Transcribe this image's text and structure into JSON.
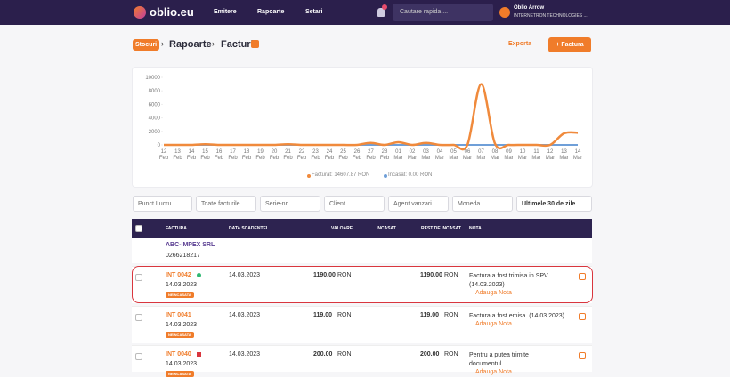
{
  "nav": {
    "logo": "oblio.eu",
    "menus": [
      "Emitere",
      "Rapoarte",
      "Setari"
    ],
    "search": "Cautare rapida ...",
    "user": "Oblio Arrow",
    "company": "INTERNETRON TECHNOLOGIES ..."
  },
  "breadcrumb": {
    "root": "Stocuri",
    "section": "Rapoarte",
    "page": "Facturi",
    "export": "Exporta",
    "add": "+ Factura"
  },
  "chart_data": {
    "type": "line",
    "categories": [
      "12 Feb",
      "13 Feb",
      "14 Feb",
      "15 Feb",
      "16 Feb",
      "17 Feb",
      "18 Feb",
      "19 Feb",
      "20 Feb",
      "21 Feb",
      "22 Feb",
      "23 Feb",
      "24 Feb",
      "25 Feb",
      "26 Feb",
      "27 Feb",
      "28 Feb",
      "01 Mar",
      "02 Mar",
      "03 Mar",
      "04 Mar",
      "05 Mar",
      "06 Mar",
      "07 Mar",
      "08 Mar",
      "09 Mar",
      "10 Mar",
      "11 Mar",
      "12 Mar",
      "13 Mar",
      "14 Mar"
    ],
    "series": [
      {
        "name": "Facturat: 14607.87 RON",
        "color": "#f08a3c",
        "values": [
          0,
          0,
          0,
          100,
          0,
          0,
          0,
          0,
          0,
          100,
          0,
          0,
          0,
          0,
          0,
          300,
          0,
          400,
          0,
          300,
          0,
          0,
          0,
          9000,
          200,
          0,
          0,
          0,
          0,
          1700,
          1800
        ]
      },
      {
        "name": "Incasat: 0.00 RON",
        "color": "#6f9fd8",
        "values": [
          0,
          0,
          0,
          0,
          0,
          0,
          0,
          0,
          0,
          0,
          0,
          0,
          0,
          0,
          0,
          0,
          0,
          0,
          0,
          0,
          0,
          0,
          0,
          0,
          0,
          0,
          0,
          0,
          0,
          0,
          0
        ]
      }
    ],
    "ylim": [
      0,
      10000
    ],
    "yticks": [
      0,
      2000,
      4000,
      6000,
      8000,
      10000
    ],
    "legend": "bottom"
  },
  "filters": [
    "Punct Lucru",
    "Toate facturile",
    "Serie-nr",
    "Client",
    "Agent vanzari",
    "Moneda",
    "Ultimele 30 de zile"
  ],
  "table": {
    "headers": [
      "FACTURA",
      "DATA SCADENTEI",
      "VALOARE",
      "INCASAT",
      "REST DE INCASAT",
      "NOTA"
    ],
    "group": {
      "client": "ABC-IMPEX SRL",
      "phone": "0266218217"
    },
    "rows": [
      {
        "number": "INT 0042",
        "date": "14.03.2023",
        "status": "NEINCASATA",
        "due": "14.03.2023",
        "value": "1190.00",
        "currency": "RON",
        "rest": "1190.00",
        "rest_currency": "RON",
        "note": "Factura a fost trimisa in SPV. (14.03.2023)",
        "add_note": "Adauga Nota"
      },
      {
        "number": "INT 0041",
        "date": "14.03.2023",
        "status": "NEINCASATA",
        "due": "14.03.2023",
        "value": "119.00",
        "currency": "RON",
        "rest": "119.00",
        "rest_currency": "RON",
        "note": "Factura a fost emisa. (14.03.2023)",
        "add_note": "Adauga Nota"
      },
      {
        "number": "INT 0040",
        "date": "14.03.2023",
        "status": "NEINCASATA",
        "due": "14.03.2023",
        "value": "200.00",
        "currency": "RON",
        "rest": "200.00",
        "rest_currency": "RON",
        "note": "Pentru a putea trimite documentul...",
        "add_note": "Adauga Nota"
      }
    ]
  }
}
